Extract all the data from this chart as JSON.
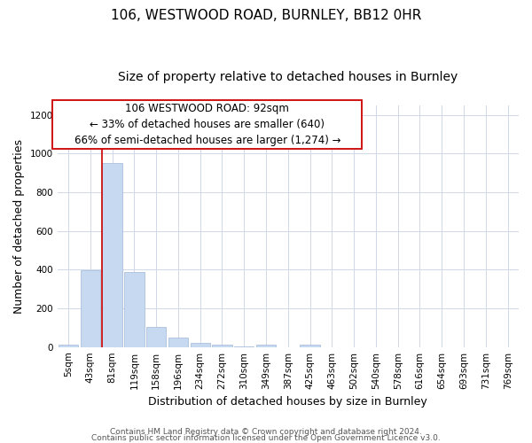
{
  "title": "106, WESTWOOD ROAD, BURNLEY, BB12 0HR",
  "subtitle": "Size of property relative to detached houses in Burnley",
  "xlabel": "Distribution of detached houses by size in Burnley",
  "ylabel": "Number of detached properties",
  "bar_labels": [
    "5sqm",
    "43sqm",
    "81sqm",
    "119sqm",
    "158sqm",
    "196sqm",
    "234sqm",
    "272sqm",
    "310sqm",
    "349sqm",
    "387sqm",
    "425sqm",
    "463sqm",
    "502sqm",
    "540sqm",
    "578sqm",
    "616sqm",
    "654sqm",
    "693sqm",
    "731sqm",
    "769sqm"
  ],
  "bar_values": [
    10,
    395,
    950,
    390,
    105,
    50,
    20,
    10,
    5,
    10,
    0,
    10,
    0,
    0,
    0,
    0,
    0,
    0,
    0,
    0,
    0
  ],
  "bar_color": "#c6d9f0",
  "bar_edge_color": "#a0b8d8",
  "vline_x": 2,
  "vline_color": "#cc0000",
  "ylim": [
    0,
    1250
  ],
  "yticks": [
    0,
    200,
    400,
    600,
    800,
    1000,
    1200
  ],
  "ann_line1": "106 WESTWOOD ROAD: 92sqm",
  "ann_line2": "← 33% of detached houses are smaller (640)",
  "ann_line3": "66% of semi-detached houses are larger (1,274) →",
  "footer_line1": "Contains HM Land Registry data © Crown copyright and database right 2024.",
  "footer_line2": "Contains public sector information licensed under the Open Government Licence v3.0.",
  "bg_color": "#ffffff",
  "grid_color": "#d0d8e8",
  "title_fontsize": 11,
  "subtitle_fontsize": 10,
  "axis_label_fontsize": 9,
  "tick_fontsize": 7.5,
  "ann_fontsize": 8.5,
  "footer_fontsize": 6.5
}
